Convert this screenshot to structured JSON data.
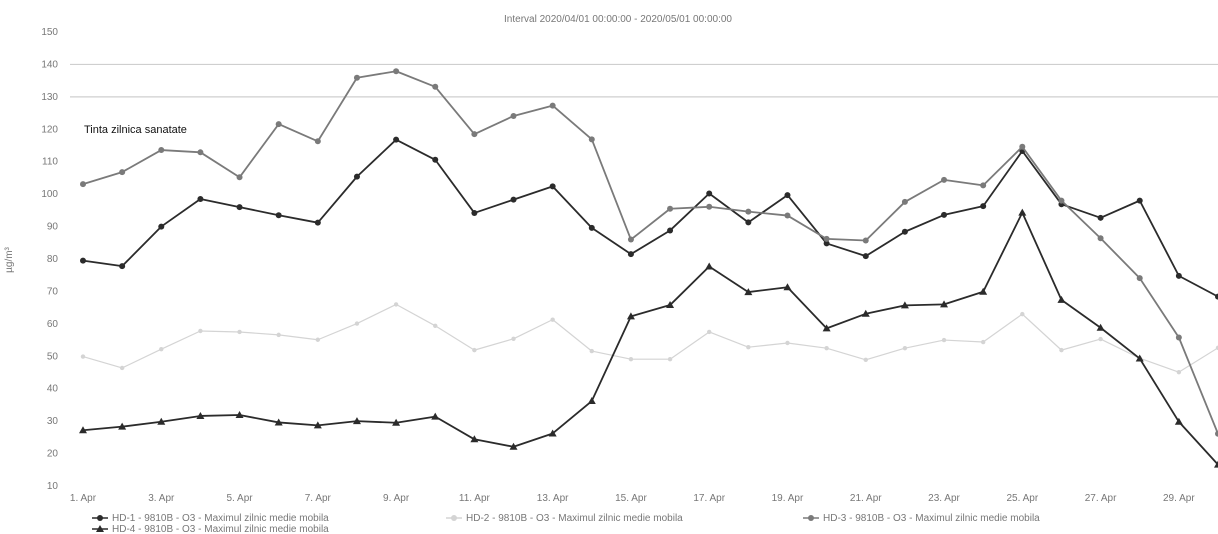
{
  "chart_data": {
    "type": "line",
    "title": "Interval 2020/04/01 00:00:00 - 2020/05/01 00:00:00",
    "ylabel": "µg/m³",
    "xlabel": "",
    "ylim": [
      10,
      150
    ],
    "yticks": [
      10,
      20,
      30,
      40,
      50,
      60,
      70,
      80,
      90,
      100,
      110,
      120,
      130,
      140,
      150
    ],
    "x": [
      "1 Apr",
      "2 Apr",
      "3 Apr",
      "4 Apr",
      "5 Apr",
      "6 Apr",
      "7 Apr",
      "8 Apr",
      "9 Apr",
      "10 Apr",
      "11 Apr",
      "12 Apr",
      "13 Apr",
      "14 Apr",
      "15 Apr",
      "16 Apr",
      "17 Apr",
      "18 Apr",
      "19 Apr",
      "20 Apr",
      "21 Apr",
      "22 Apr",
      "23 Apr",
      "24 Apr",
      "25 Apr",
      "26 Apr",
      "27 Apr",
      "28 Apr",
      "29 Apr",
      "30 Apr"
    ],
    "xtick_labels": [
      "1. Apr",
      "3. Apr",
      "5. Apr",
      "7. Apr",
      "9. Apr",
      "11. Apr",
      "13. Apr",
      "15. Apr",
      "17. Apr",
      "19. Apr",
      "21. Apr",
      "23. Apr",
      "25. Apr",
      "27. Apr",
      "29. Apr"
    ],
    "annotation": "Tinta zilnica sanatate",
    "reference_lines": [
      140,
      130
    ],
    "grid": false,
    "legend_position": "bottom",
    "series": [
      {
        "name": "HD-1 - 9810B - O3 - Maximul zilnic medie mobila",
        "color": "#2b2b2b",
        "marker": "circle",
        "values": [
          79.5,
          77.8,
          90,
          98.5,
          96,
          93.5,
          91.2,
          105.4,
          116.8,
          110.6,
          94.2,
          98.3,
          102.4,
          89.6,
          81.5,
          88.8,
          100.2,
          91.3,
          99.7,
          84.8,
          80.9,
          88.4,
          93.6,
          96.3,
          113.3,
          96.9,
          92.7,
          98,
          74.8,
          68.4
        ]
      },
      {
        "name": "HD-2 - 9810B - O3 - Maximul zilnic medie mobila",
        "color": "#d4d4d4",
        "marker": "circle",
        "values": [
          49.9,
          46.4,
          52.2,
          57.8,
          57.5,
          56.6,
          55.1,
          60.1,
          66,
          59.4,
          51.9,
          55.4,
          61.3,
          51.6,
          49.1,
          49.1,
          57.5,
          52.8,
          54.1,
          52.5,
          48.9,
          52.5,
          55,
          54.4,
          63,
          51.9,
          55.3,
          49.4,
          45.1,
          52.6
        ]
      },
      {
        "name": "HD-3 - 9810B - O3 - Maximul zilnic medie mobila",
        "color": "#7a7a7a",
        "marker": "circle",
        "values": [
          103.1,
          106.8,
          113.6,
          112.9,
          105.2,
          121.6,
          116.3,
          135.9,
          137.9,
          133.1,
          118.5,
          124.1,
          127.3,
          116.9,
          86,
          95.5,
          96.1,
          94.6,
          93.4,
          86.2,
          85.7,
          97.6,
          104.4,
          102.7,
          114.6,
          98,
          86.4,
          74.1,
          55.8,
          26.1
        ]
      },
      {
        "name": "HD-4 - 9810B - O3 - Maximul zilnic medie mobila",
        "color": "#2b2b2b",
        "marker": "triangle",
        "values": [
          27.2,
          28.3,
          29.8,
          31.6,
          31.9,
          29.6,
          28.7,
          30,
          29.5,
          31.4,
          24.4,
          22.1,
          26.2,
          36.2,
          62.3,
          65.8,
          77.7,
          69.8,
          71.3,
          58.6,
          63.1,
          65.7,
          66,
          69.9,
          94.3,
          67.4,
          58.8,
          49.3,
          29.8,
          16.6
        ]
      }
    ]
  }
}
